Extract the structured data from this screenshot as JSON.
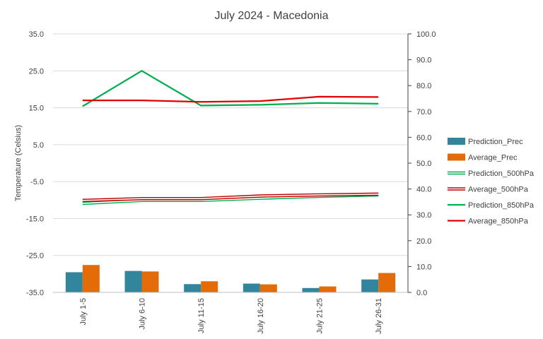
{
  "chart_data": {
    "type": "bar+line",
    "title": "July 2024 - Macedonia",
    "ylabel": "Temperature (Celsius)",
    "y2label": "",
    "categories": [
      "July 1-5",
      "July 6-10",
      "July 11-15",
      "July 16-20",
      "July 21-25",
      "July 26-31"
    ],
    "ylim": [
      -35,
      35
    ],
    "yticks": [
      "35.0",
      "25.0",
      "15.0",
      "5.0",
      "-5.0",
      "-15.0",
      "-25.0",
      "-35.0"
    ],
    "y2lim": [
      0,
      100
    ],
    "y2ticks": [
      "100.0",
      "90.0",
      "80.0",
      "70.0",
      "60.0",
      "50.0",
      "40.0",
      "30.0",
      "20.0",
      "10.0",
      "0.0"
    ],
    "bar_series": [
      {
        "name": "Prediction_Prec",
        "color": "#31859C",
        "axis": "y2",
        "values": [
          7.8,
          8.3,
          3.2,
          3.4,
          1.7,
          5.0
        ]
      },
      {
        "name": "Average_Prec",
        "color": "#E36C09",
        "axis": "y2",
        "values": [
          10.6,
          8.1,
          4.3,
          3.1,
          2.3,
          7.5
        ]
      }
    ],
    "line_series": [
      {
        "name": "Prediction_500hPa",
        "color": "#00B050",
        "style": "double",
        "axis": "y",
        "values": [
          -10.9,
          -10.1,
          -10.1,
          -9.5,
          -9.0,
          -8.6
        ]
      },
      {
        "name": "Average_500hPa",
        "color": "#C00000",
        "style": "double",
        "axis": "y",
        "values": [
          -10.1,
          -9.6,
          -9.6,
          -8.9,
          -8.6,
          -8.4
        ]
      },
      {
        "name": "Prediction_850hPa",
        "color": "#00B050",
        "style": "solid",
        "axis": "y",
        "values": [
          15.4,
          25.0,
          15.6,
          15.8,
          16.3,
          16.1
        ]
      },
      {
        "name": "Average_850hPa",
        "color": "#E00000",
        "style": "solid",
        "axis": "y",
        "values": [
          17.0,
          17.0,
          16.6,
          16.8,
          18.0,
          17.9
        ]
      }
    ],
    "legend_position": "right",
    "grid": true
  }
}
